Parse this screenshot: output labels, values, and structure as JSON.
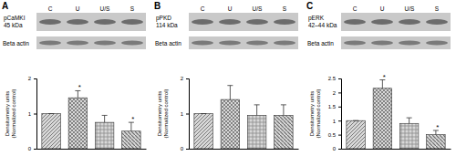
{
  "chart_data": [
    {
      "type": "bar",
      "title": "A",
      "blot_labels": [
        "pCaMKI",
        "45 kDa",
        "Beta actin"
      ],
      "y_label": [
        "Densitometry units",
        "(Normalized control)"
      ],
      "categories": [
        "C",
        "U",
        "U/S",
        "S"
      ],
      "values": [
        1,
        1.45,
        0.75,
        0.5
      ],
      "errors": [
        0,
        0.2,
        0.2,
        0.25
      ],
      "significance": [
        null,
        "*",
        null,
        "*"
      ],
      "colors": [
        "#7a7a7a",
        "#5a5a5a",
        "#8a8a8a",
        "#6a6a6a"
      ],
      "ylim": [
        0,
        2
      ],
      "yticks": [
        0,
        1,
        2
      ]
    },
    {
      "type": "bar",
      "title": "B",
      "blot_labels": [
        "pPKD",
        "114 kDa",
        "Beta actin"
      ],
      "y_label": [
        "Densitometry units",
        "(Normalized control)"
      ],
      "categories": [
        "C",
        "U",
        "U/S",
        "S"
      ],
      "values": [
        1,
        1.4,
        0.95,
        0.95
      ],
      "errors": [
        0,
        0.4,
        0.3,
        0.3
      ],
      "colors": [
        "#7a7a7a",
        "#5a5a5a",
        "#8a8a8a",
        "#6a6a6a"
      ],
      "ylim": [
        0,
        2
      ],
      "yticks": [
        0,
        1,
        2
      ]
    },
    {
      "type": "bar",
      "title": "C",
      "blot_labels": [
        "pERK",
        "42–44 kDa",
        "Beta actin"
      ],
      "y_label": [
        "Densitometry units",
        "(Normalized control)"
      ],
      "categories": [
        "C",
        "U",
        "U/S",
        "S"
      ],
      "values": [
        1,
        2.15,
        0.9,
        0.5
      ],
      "errors": [
        0,
        0.3,
        0.2,
        0.15
      ],
      "significance": [
        null,
        "*",
        null,
        "*"
      ],
      "colors": [
        "#7a7a7a",
        "#5a5a5a",
        "#8a8a8a",
        "#6a6a6a"
      ],
      "ylim": [
        0,
        2.5
      ],
      "yticks": [
        0,
        0.5,
        1,
        1.5,
        2,
        2.5
      ]
    }
  ]
}
